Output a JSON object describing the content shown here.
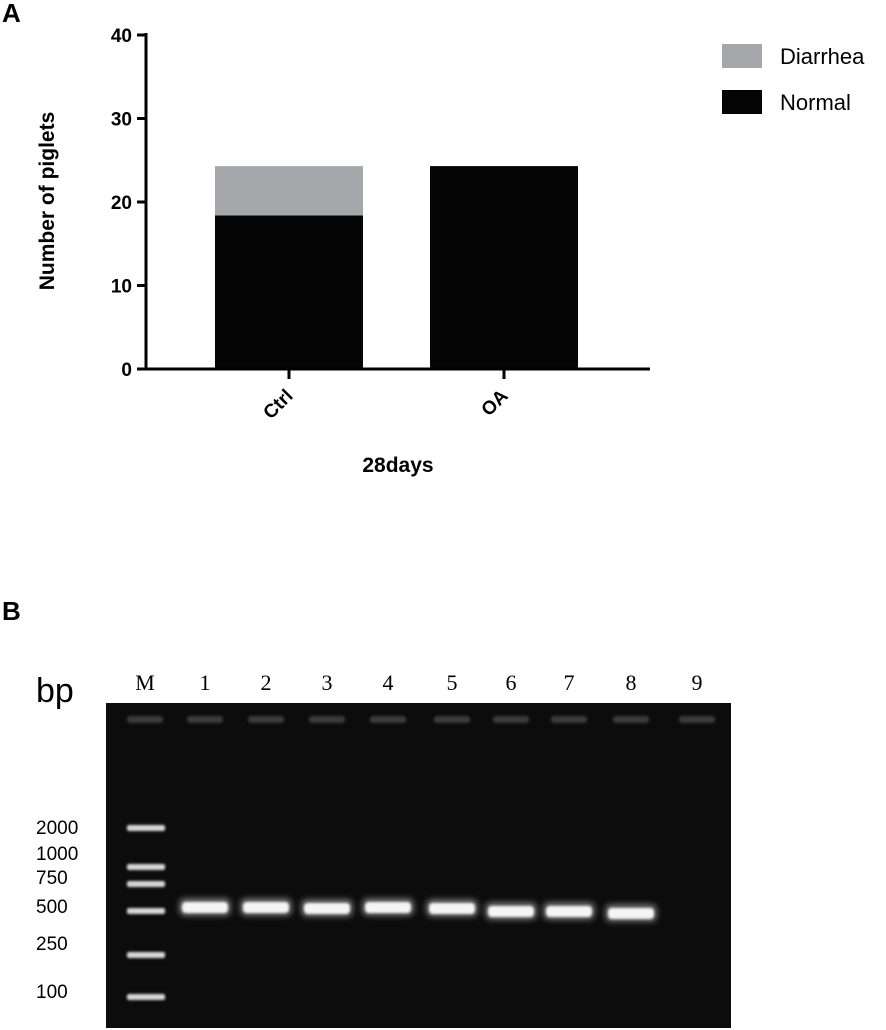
{
  "panels": {
    "a_label": "A",
    "b_label": "B"
  },
  "chart_data": {
    "type": "bar",
    "stacked": true,
    "categories": [
      "Ctrl",
      "OA"
    ],
    "series": [
      {
        "name": "Normal",
        "values": [
          18.4,
          24.3
        ],
        "color": "#050505"
      },
      {
        "name": "Diarrhea",
        "values": [
          5.9,
          0
        ],
        "color": "#a6a7aa"
      }
    ],
    "xlabel": "28days",
    "ylabel": "Number of piglets",
    "ylim": [
      0,
      40
    ],
    "yticks": [
      0,
      10,
      20,
      30,
      40
    ],
    "legend_position": "top-right",
    "grid": false
  },
  "gel": {
    "unit": "bp",
    "lane_labels": [
      "M",
      "1",
      "2",
      "3",
      "4",
      "5",
      "6",
      "7",
      "8",
      "9"
    ],
    "ladder_sizes": [
      "2000",
      "1000",
      "750",
      "500",
      "250",
      "100"
    ],
    "band_size_bp": 500,
    "bands_present": [
      true,
      true,
      true,
      true,
      true,
      true,
      true,
      true,
      false
    ]
  }
}
